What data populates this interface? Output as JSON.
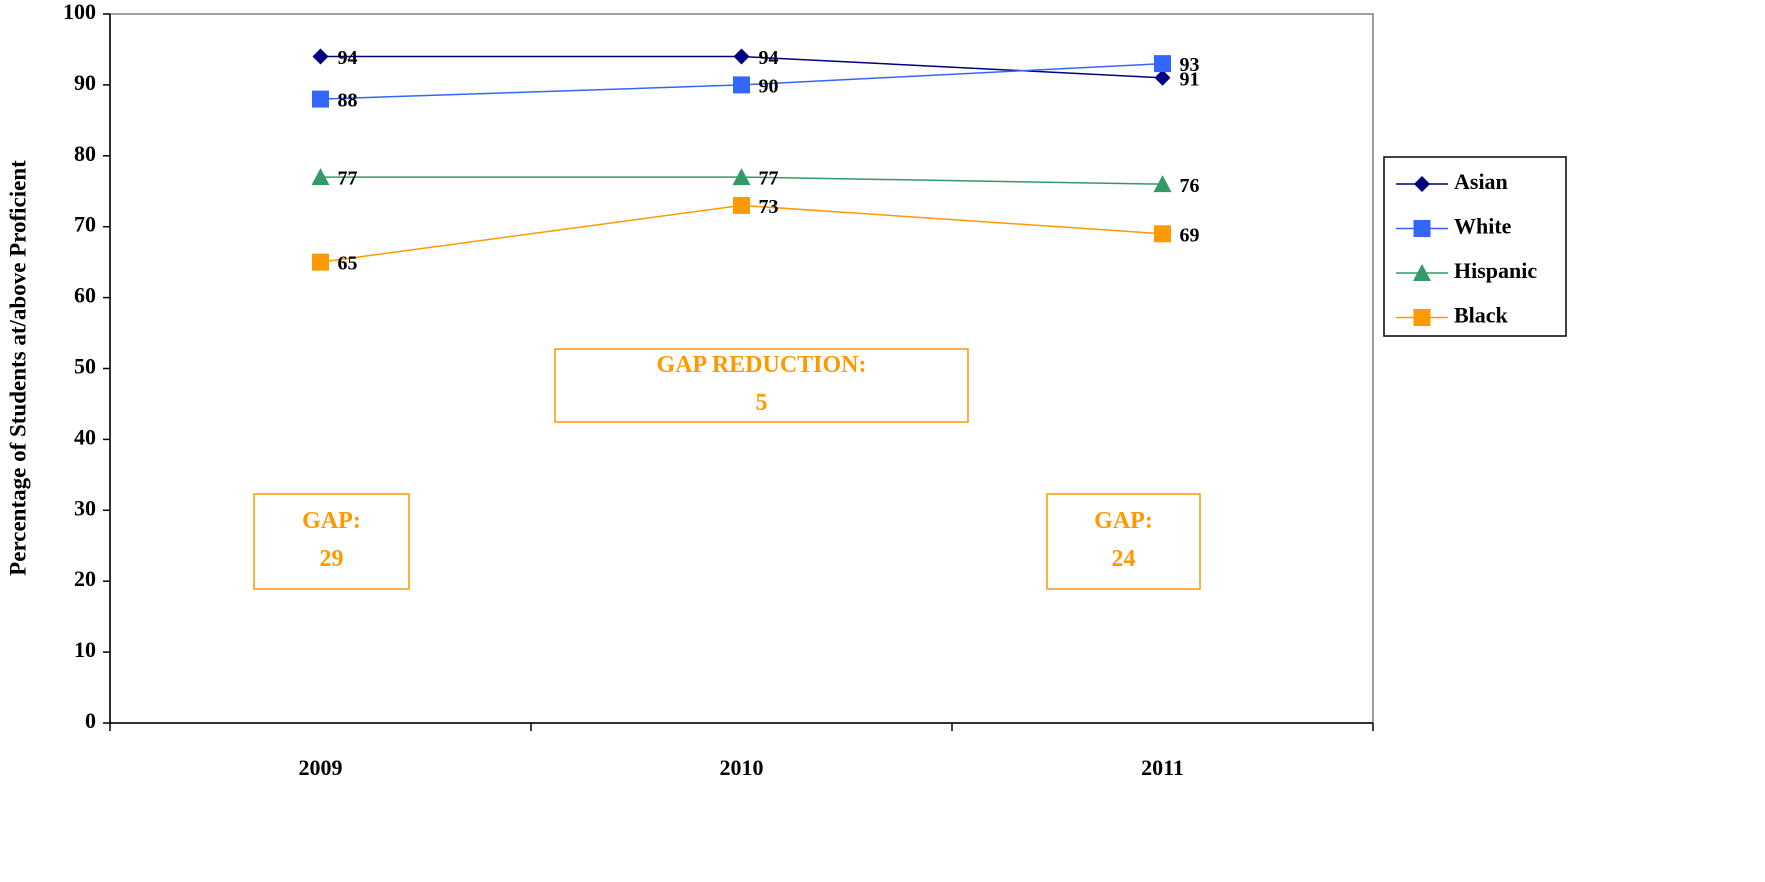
{
  "chart_data": {
    "type": "line",
    "y_label": "Percentage of Students at/above Proficient",
    "categories": [
      "2009",
      "2010",
      "2011"
    ],
    "series": [
      {
        "name": "Asian",
        "color": "#000080",
        "marker": "diamond",
        "values": [
          94,
          94,
          91
        ]
      },
      {
        "name": "White",
        "color": "#3366ff",
        "marker": "square",
        "values": [
          88,
          90,
          93
        ]
      },
      {
        "name": "Hispanic",
        "color": "#339966",
        "marker": "triangle",
        "values": [
          77,
          77,
          76
        ]
      },
      {
        "name": "Black",
        "color": "#ff9900",
        "marker": "square",
        "values": [
          65,
          73,
          69
        ]
      }
    ],
    "ylim": [
      0,
      100
    ],
    "yticks": [
      0,
      10,
      20,
      30,
      40,
      50,
      60,
      70,
      80,
      90,
      100
    ],
    "legend": "right",
    "annotations": [
      {
        "label": "GAP REDUCTION:",
        "value": 5,
        "color": "#ff9900"
      },
      {
        "label": "GAP:",
        "value": 29,
        "color": "#ff9900"
      },
      {
        "label": "GAP:",
        "value": 24,
        "color": "#ff9900"
      }
    ]
  }
}
